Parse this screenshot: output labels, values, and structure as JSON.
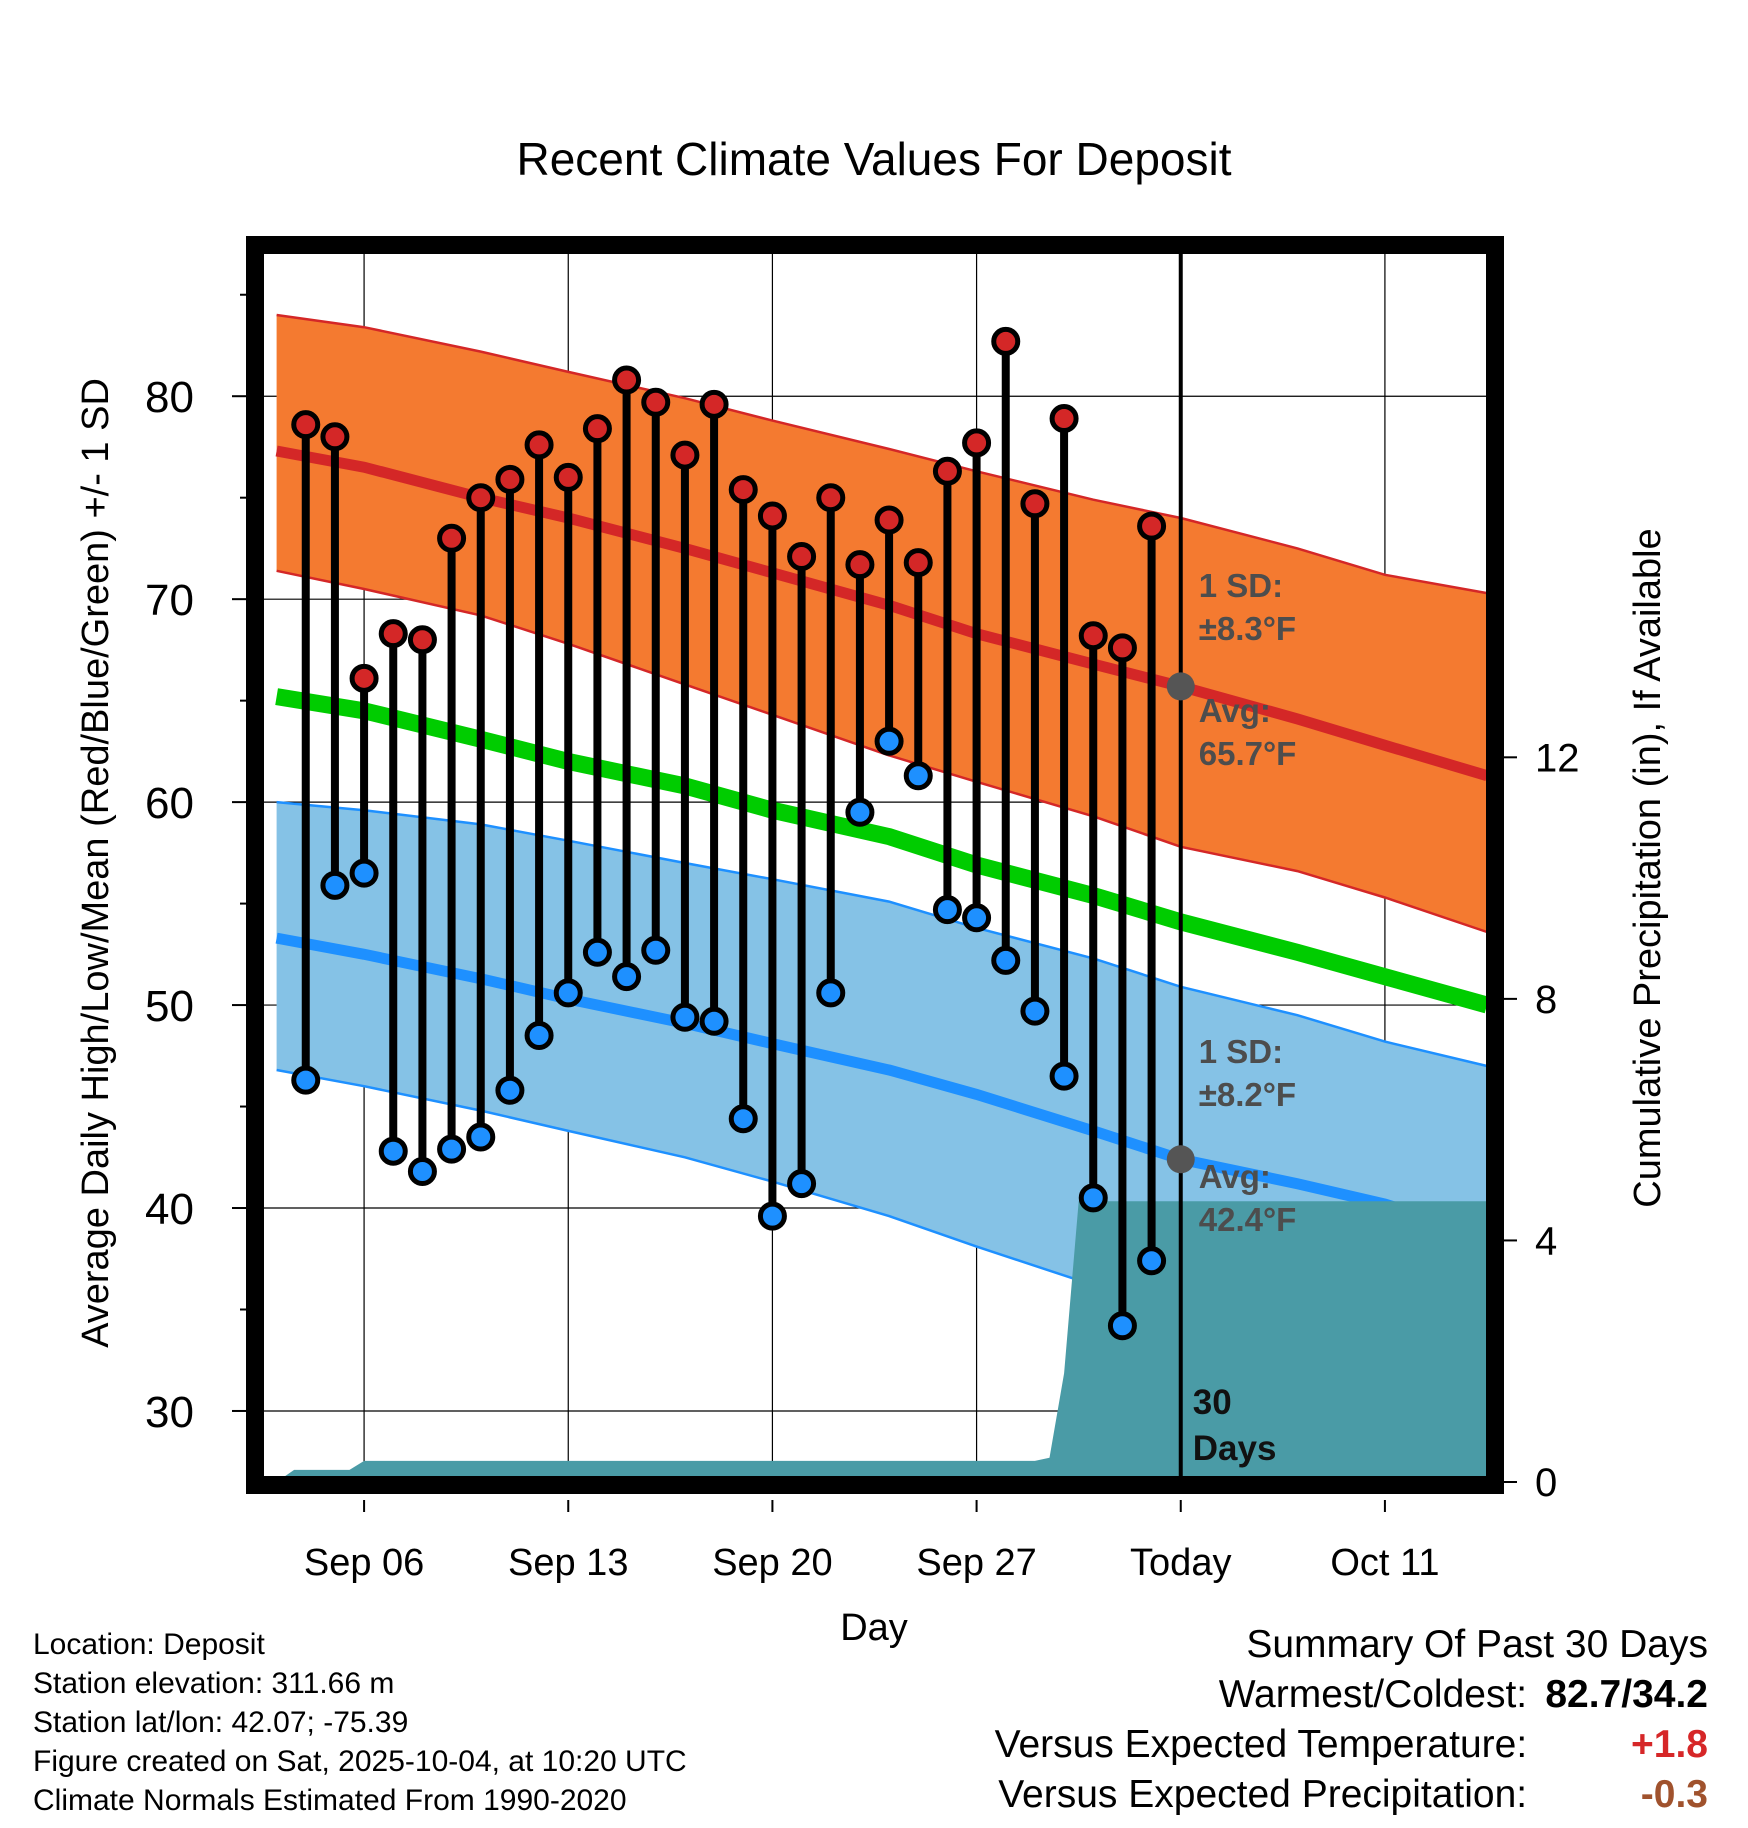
{
  "chart_data": {
    "type": "line",
    "title": "Recent Climate Values For Deposit",
    "xlabel": "Day",
    "ylabel": "Average Daily High/Low/Mean (Red/Blue/Green) +/- 1 SD",
    "y2label": "Cumulative Precipitation (in), If Available",
    "xlim": [
      2.5,
      44.5
    ],
    "ylim": [
      26.5,
      87.5
    ],
    "y2lim": [
      0,
      20.5
    ],
    "x_ticks": [
      6,
      13,
      20,
      27,
      34,
      41
    ],
    "x_tick_labels": [
      "Sep 06",
      "Sep 13",
      "Sep 20",
      "Sep 27",
      "Today",
      "Oct 11"
    ],
    "y_ticks": [
      30,
      40,
      50,
      60,
      70,
      80
    ],
    "y_tick_labels": [
      "30",
      "40",
      "50",
      "60",
      "70",
      "80"
    ],
    "y2_ticks": [
      0,
      4,
      8,
      12
    ],
    "y2_tick_labels": [
      "0",
      "4",
      "8",
      "12"
    ],
    "grid": true,
    "today_x": 34,
    "normals": {
      "x": [
        3,
        6,
        10,
        13,
        17,
        20,
        24,
        27,
        31,
        34,
        38,
        41,
        44.5
      ],
      "high_mean": [
        77.3,
        76.5,
        75.0,
        74.0,
        72.5,
        71.3,
        69.7,
        68.3,
        66.8,
        65.7,
        64.1,
        62.8,
        61.3
      ],
      "high_upper": [
        84.0,
        83.4,
        82.2,
        81.2,
        79.9,
        78.8,
        77.4,
        76.3,
        74.9,
        74.0,
        72.5,
        71.2,
        70.3
      ],
      "high_lower": [
        71.4,
        70.5,
        69.2,
        67.8,
        65.8,
        64.3,
        62.3,
        61.0,
        59.3,
        57.8,
        56.6,
        55.3,
        53.6
      ],
      "low_mean": [
        53.3,
        52.5,
        51.3,
        50.3,
        49.1,
        48.1,
        46.8,
        45.6,
        43.8,
        42.4,
        41.2,
        40.2,
        38.6
      ],
      "low_upper": [
        60.0,
        59.6,
        58.9,
        58.1,
        57.0,
        56.2,
        55.1,
        53.8,
        52.3,
        50.9,
        49.5,
        48.2,
        47.0
      ],
      "low_lower": [
        46.8,
        46.0,
        44.8,
        43.8,
        42.5,
        41.3,
        39.6,
        38.1,
        36.2,
        34.7,
        32.8,
        31.4,
        29.5
      ],
      "mean": [
        65.2,
        64.5,
        63.1,
        62.0,
        60.8,
        59.6,
        58.3,
        56.9,
        55.4,
        54.1,
        52.6,
        51.4,
        50.0
      ]
    },
    "daily": {
      "x": [
        5,
        6,
        7,
        8,
        9,
        10,
        11,
        12,
        13,
        14,
        15,
        16,
        17,
        18,
        19,
        20,
        21,
        22,
        23,
        24,
        25,
        26,
        27,
        28,
        29,
        30,
        31,
        32,
        33
      ],
      "high": [
        78.0,
        66.1,
        68.3,
        68.0,
        73.0,
        75.0,
        75.9,
        77.6,
        76.0,
        78.4,
        80.8,
        79.7,
        77.1,
        79.6,
        75.4,
        74.1,
        72.1,
        75.0,
        71.7,
        73.9,
        71.8,
        76.3,
        77.7,
        82.7,
        74.7,
        78.9,
        68.2,
        67.6,
        73.6
      ],
      "low": [
        55.9,
        56.5,
        42.8,
        41.8,
        42.9,
        43.5,
        45.8,
        48.5,
        50.6,
        52.6,
        51.4,
        52.7,
        49.4,
        49.2,
        44.4,
        39.6,
        41.2,
        50.6,
        59.5,
        63.0,
        61.3,
        54.7,
        54.3,
        52.2,
        49.7,
        46.5,
        40.5,
        34.2,
        37.4
      ]
    },
    "extra_day": {
      "x": 4,
      "high": 78.6,
      "low": 46.3
    },
    "precipitation": {
      "x": [
        3,
        3.6,
        4.5,
        5.5,
        6,
        10,
        15,
        20,
        25,
        29,
        29.5,
        30,
        30.5,
        44.5
      ],
      "cumulative": [
        0,
        0.2,
        0.2,
        0.2,
        0.35,
        0.35,
        0.35,
        0.35,
        0.35,
        0.35,
        0.4,
        1.8,
        4.65,
        4.65
      ]
    },
    "annotations": {
      "high_sd_label": "1 SD:",
      "high_sd_value": "±8.3°F",
      "high_avg_label": "Avg:",
      "high_avg_value": "65.7°F",
      "low_sd_label": "1 SD:",
      "low_sd_value": "±8.2°F",
      "low_avg_label": "Avg:",
      "low_avg_value": "42.4°F",
      "days_count": "30",
      "days_word": "Days"
    },
    "colors": {
      "high_band": "#f47a30",
      "high_line": "#d42727",
      "low_band": "#85c2e6",
      "low_line": "#1e90ff",
      "mean_line": "#00cc00",
      "precip": "#4a9ba6",
      "annotation": "#4d4d4d"
    }
  },
  "info": {
    "location": "Location: Deposit",
    "elevation": "Station elevation: 311.66 m",
    "latlon": "Station lat/lon: 42.07; -75.39",
    "created": "Figure created on Sat, 2025-10-04, at 10:20 UTC",
    "normals": "Climate Normals Estimated From 1990-2020"
  },
  "summary": {
    "title": "Summary Of Past 30 Days",
    "warm_cold_label": "Warmest/Coldest:",
    "warm_cold_value": "82.7/34.2",
    "temp_label": "Versus Expected Temperature:",
    "temp_value": "+1.8",
    "temp_color": "#d62728",
    "precip_label": "Versus Expected Precipitation:",
    "precip_value": "-0.3",
    "precip_color": "#a0522d"
  }
}
